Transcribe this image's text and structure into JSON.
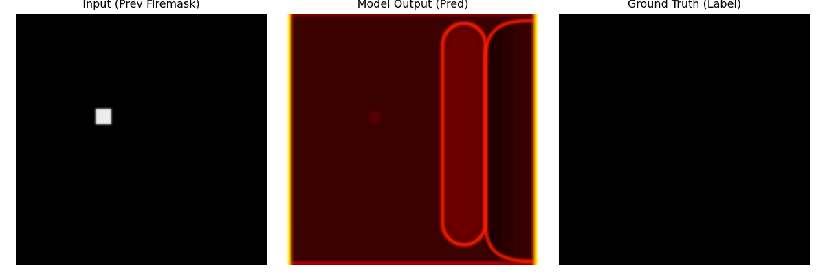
{
  "figure": {
    "panels": [
      {
        "title": "Input (Prev Firemask)",
        "image": "binary fire mask, black background with a single small white square"
      },
      {
        "title": "Model Output (Pred)",
        "image": "hot colormap prediction: dark red field, bright yellow left/right edges, red ellipse outlines on the right"
      },
      {
        "title": "Ground Truth (Label)",
        "image": "all-black mask"
      }
    ],
    "colors": {
      "mask_background": "#000000",
      "mask_fire": "#eeeeee",
      "pred_background": "#3a0000",
      "pred_ring": "#ff1a00",
      "pred_edge": "#ffff40"
    }
  }
}
